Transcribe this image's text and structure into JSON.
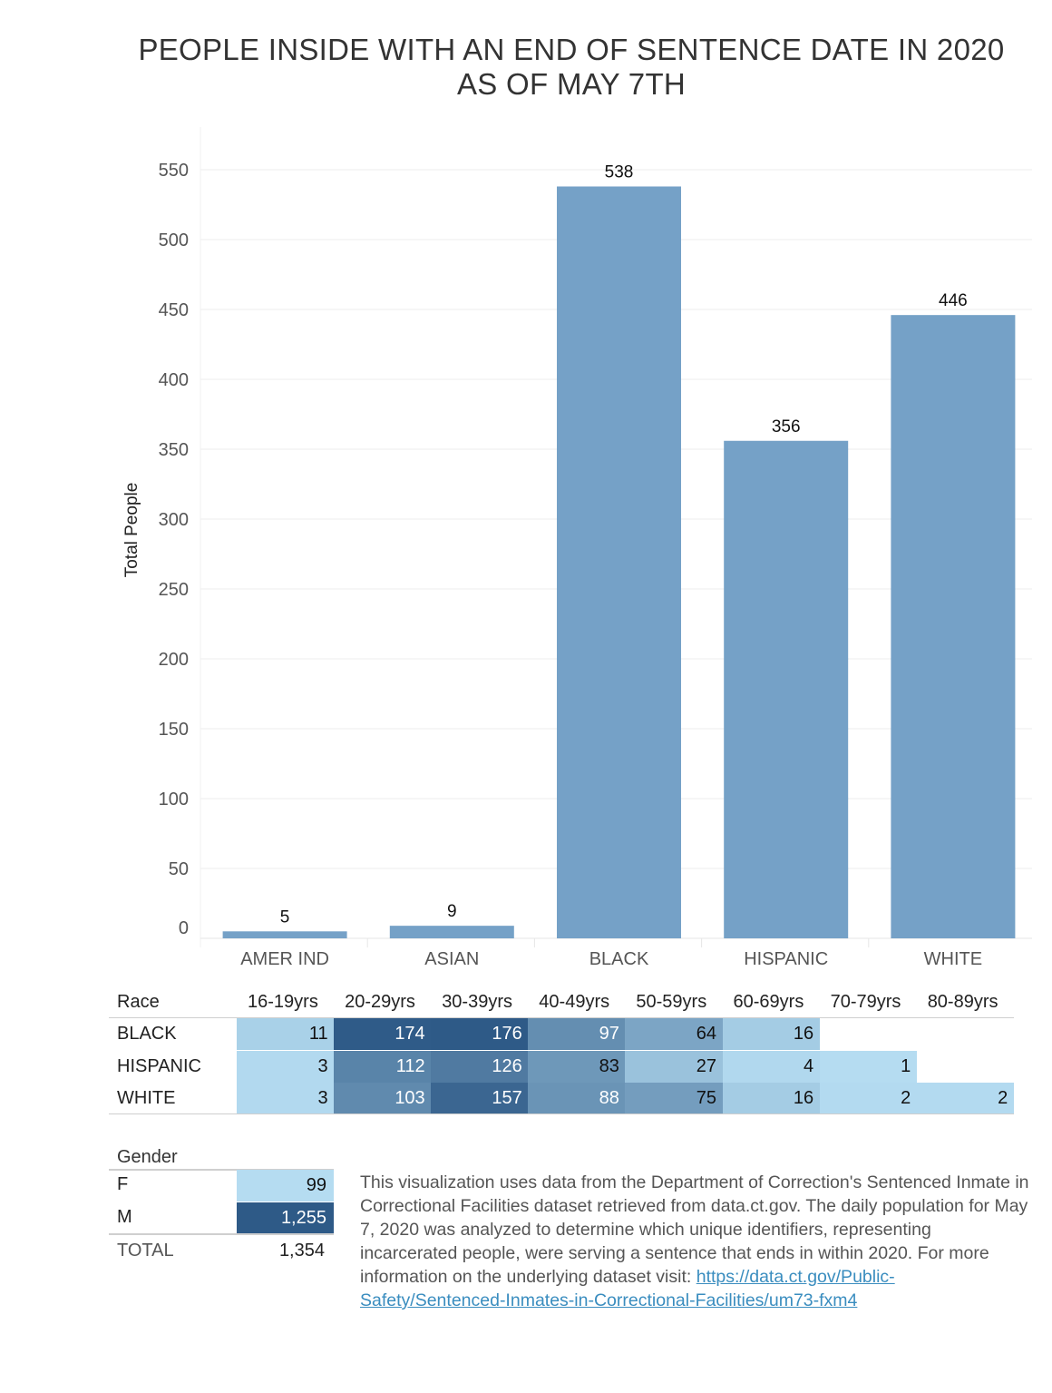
{
  "title_line1": "PEOPLE INSIDE WITH AN END OF SENTENCE DATE IN 2020",
  "title_line2": "AS OF MAY 7TH",
  "chart_data": {
    "type": "bar",
    "categories": [
      "AMER IND",
      "ASIAN",
      "BLACK",
      "HISPANIC",
      "WHITE"
    ],
    "values": [
      5,
      9,
      538,
      356,
      446
    ],
    "ylabel": "Total People",
    "xlabel": "",
    "ylim": [
      0,
      580
    ],
    "yticks": [
      0,
      50,
      100,
      150,
      200,
      250,
      300,
      350,
      400,
      450,
      500,
      550
    ],
    "grid": true,
    "bar_color": "#75a1c7"
  },
  "race_table": {
    "header": "Race",
    "columns": [
      "16-19yrs",
      "20-29yrs",
      "30-39yrs",
      "40-49yrs",
      "50-59yrs",
      "60-69yrs",
      "70-79yrs",
      "80-89yrs"
    ],
    "rows": [
      {
        "label": "BLACK",
        "values": [
          11,
          174,
          176,
          97,
          64,
          16,
          null,
          null
        ]
      },
      {
        "label": "HISPANIC",
        "values": [
          3,
          112,
          126,
          83,
          27,
          4,
          1,
          null
        ]
      },
      {
        "label": "WHITE",
        "values": [
          3,
          103,
          157,
          88,
          75,
          16,
          2,
          2
        ]
      }
    ]
  },
  "gender_table": {
    "header": "Gender",
    "rows": [
      {
        "label": "F",
        "value": "99",
        "num": 99
      },
      {
        "label": "M",
        "value": "1,255",
        "num": 1255
      }
    ],
    "total_label": "TOTAL",
    "total_value": "1,354"
  },
  "note": {
    "text": "This visualization uses data from the Department of Correction's Sentenced Inmate in Correctional Facilities dataset retrieved from data.ct.gov. The daily population for May 7, 2020 was analyzed to determine which unique identifiers, representing incarcerated people, were serving a sentence that ends in within 2020. For more information on the underlying dataset visit:",
    "link": "https://data.ct.gov/Public-Safety/Sentenced-Inmates-in-Correctional-Facilities/um73-fxm4"
  }
}
